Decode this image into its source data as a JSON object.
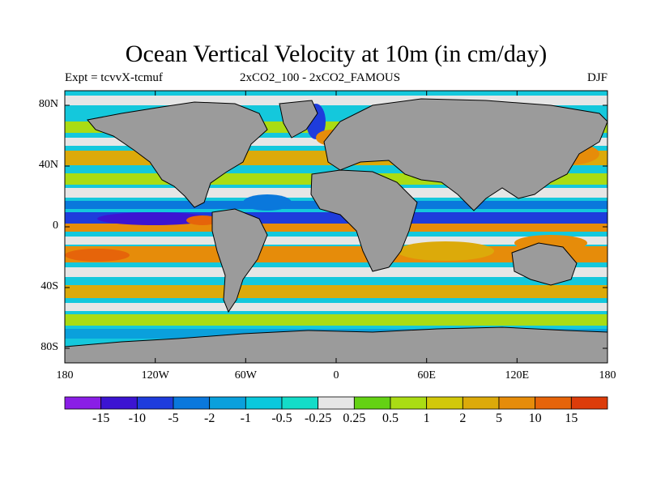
{
  "title": "Ocean Vertical Velocity at 10m (in cm/day)",
  "experiment": "Expt = tcvvX-tcmuf",
  "comparison": "2xCO2_100 - 2xCO2_FAMOUS",
  "season": "DJF",
  "lat_ticks": [
    "80N",
    "40N",
    "0",
    "40S",
    "80S"
  ],
  "lon_ticks": [
    "180",
    "120W",
    "60W",
    "0",
    "60E",
    "120E",
    "180"
  ],
  "legend": {
    "labels": [
      "-15",
      "-10",
      "-5",
      "-2",
      "-1",
      "-0.5",
      "-0.25",
      "0.25",
      "0.5",
      "1",
      "2",
      "5",
      "10",
      "15"
    ],
    "colors": [
      "#8a1ee6",
      "#3c14d2",
      "#1e3cdc",
      "#0a78dc",
      "#0aa0dc",
      "#0ac8dc",
      "#14dcc8",
      "#e6e6e6",
      "#64d214",
      "#aadc14",
      "#d2c80a",
      "#dcaa0a",
      "#e68c0a",
      "#e6640a",
      "#dc3c0a"
    ]
  },
  "colors": {
    "land": "#9b9b9b",
    "coast": "#000000"
  }
}
